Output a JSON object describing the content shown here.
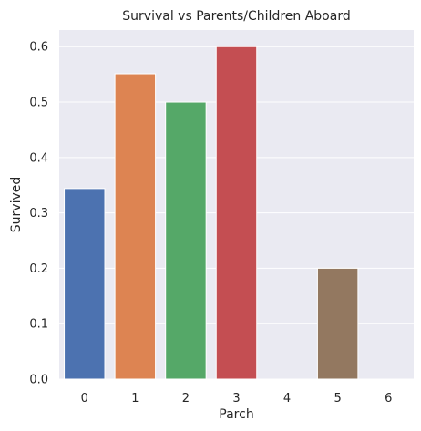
{
  "chart_data": {
    "type": "bar",
    "title": "Survival vs Parents/Children Aboard",
    "xlabel": "Parch",
    "ylabel": "Survived",
    "categories": [
      "0",
      "1",
      "2",
      "3",
      "4",
      "5",
      "6"
    ],
    "values": [
      0.344,
      0.551,
      0.5,
      0.6,
      0.0,
      0.2,
      0.0
    ],
    "colors": [
      "#4c72b0",
      "#dd8452",
      "#55a868",
      "#c44e52",
      "#8172b3",
      "#937860",
      "#da8bc3"
    ],
    "ylim": [
      0,
      0.63
    ],
    "yticks": [
      "0.0",
      "0.1",
      "0.2",
      "0.3",
      "0.4",
      "0.5",
      "0.6"
    ],
    "ytick_values": [
      0,
      0.1,
      0.2,
      0.3,
      0.4,
      0.5,
      0.6
    ],
    "grid": true,
    "background": "#eaeaf2",
    "grid_color": "#ffffff"
  }
}
